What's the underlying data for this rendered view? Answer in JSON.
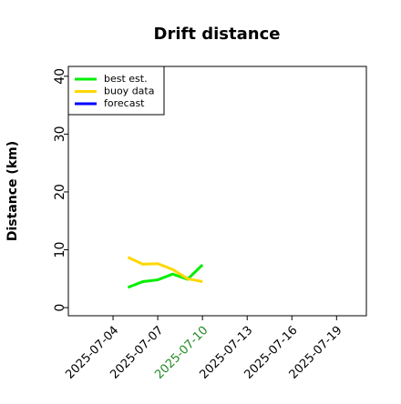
{
  "chart_data": {
    "type": "line",
    "title": "Drift distance",
    "ylabel": "Distance (km)",
    "x": [
      "2025-07-05",
      "2025-07-06",
      "2025-07-07",
      "2025-07-08",
      "2025-07-09",
      "2025-07-10"
    ],
    "series": [
      {
        "name": "best est.",
        "color": "#00ee00",
        "values": [
          3.5,
          4.5,
          4.8,
          5.8,
          4.9,
          7.4
        ]
      },
      {
        "name": "buoy data",
        "color": "#ffd700",
        "values": [
          8.7,
          7.5,
          7.6,
          6.6,
          5.0,
          4.5
        ]
      },
      {
        "name": "forecast",
        "color": "#0000ff",
        "values": [
          null,
          null,
          null,
          null,
          null,
          null
        ]
      }
    ],
    "xlim": [
      "2025-07-01",
      "2025-07-21"
    ],
    "xticks": [
      "2025-07-04",
      "2025-07-07",
      "2025-07-10",
      "2025-07-13",
      "2025-07-16",
      "2025-07-19"
    ],
    "xtick_highlight": {
      "index": 2,
      "color": "#228b22"
    },
    "ylim": [
      -1.4,
      41.7
    ],
    "yticks": [
      0,
      10,
      20,
      30,
      40
    ],
    "legend": "upper left",
    "grid": false
  }
}
